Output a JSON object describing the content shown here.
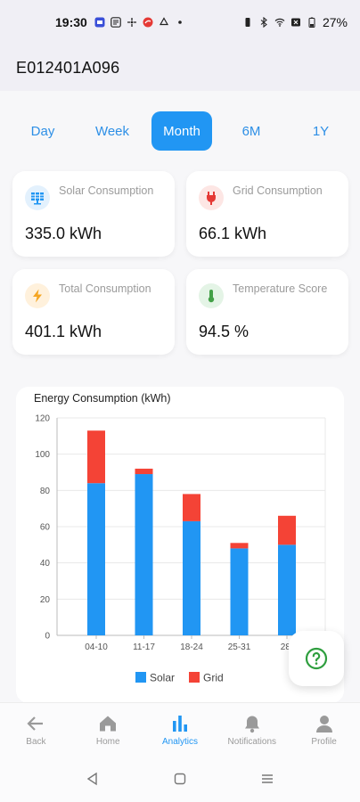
{
  "status_bar": {
    "time": "19:30",
    "battery": "27%"
  },
  "header": {
    "title": "E012401A096"
  },
  "tabs": [
    {
      "label": "Day",
      "active": false
    },
    {
      "label": "Week",
      "active": false
    },
    {
      "label": "Month",
      "active": true
    },
    {
      "label": "6M",
      "active": false
    },
    {
      "label": "1Y",
      "active": false
    }
  ],
  "cards": [
    {
      "label": "Solar Consumption",
      "value": "335.0 kWh",
      "icon": "solar-panel-icon",
      "icon_bg": "#e3f1fd",
      "icon_color": "#2196f3"
    },
    {
      "label": "Grid Consumption",
      "value": "66.1 kWh",
      "icon": "plug-icon",
      "icon_bg": "#fde6e4",
      "icon_color": "#e53935"
    },
    {
      "label": "Total Consumption",
      "value": "401.1 kWh",
      "icon": "lightning-icon",
      "icon_bg": "#fff1dc",
      "icon_color": "#f5a623"
    },
    {
      "label": "Temperature Score",
      "value": "94.5 %",
      "icon": "thermometer-icon",
      "icon_bg": "#e4f4e6",
      "icon_color": "#43a047"
    }
  ],
  "chart_data": {
    "type": "bar",
    "stacked": true,
    "title": "Energy Consumption (kWh)",
    "categories": [
      "04-10",
      "11-17",
      "18-24",
      "25-31",
      "28-"
    ],
    "series": [
      {
        "name": "Solar",
        "color": "#2196f3",
        "values": [
          84,
          89,
          63,
          48,
          50
        ]
      },
      {
        "name": "Grid",
        "color": "#f44336",
        "values": [
          29,
          3,
          15,
          3,
          16
        ]
      }
    ],
    "ylim": [
      0,
      120
    ],
    "yticks": [
      0,
      20,
      40,
      60,
      80,
      100,
      120
    ],
    "grid": true,
    "legend": "bottom"
  },
  "bottom_nav": [
    {
      "label": "Back",
      "icon": "arrow-left-icon",
      "active": false
    },
    {
      "label": "Home",
      "icon": "home-icon",
      "active": false
    },
    {
      "label": "Analytics",
      "icon": "analytics-icon",
      "active": true
    },
    {
      "label": "Notifications",
      "icon": "bell-icon",
      "active": false
    },
    {
      "label": "Profile",
      "icon": "person-icon",
      "active": false
    }
  ],
  "colors": {
    "accent": "#2196f3",
    "solar": "#2196f3",
    "grid": "#f44336"
  }
}
